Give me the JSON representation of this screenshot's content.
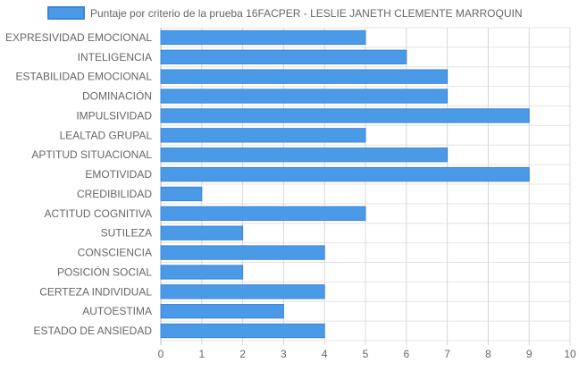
{
  "chart_data": {
    "type": "bar",
    "orientation": "horizontal",
    "legend_position": "top",
    "grid": true,
    "xlim": [
      0,
      10
    ],
    "x_ticks": [
      "0",
      "1",
      "2",
      "3",
      "4",
      "5",
      "6",
      "7",
      "8",
      "9",
      "10"
    ],
    "categories": [
      "EXPRESIVIDAD EMOCIONAL",
      "INTELIGENCIA",
      "ESTABILIDAD EMOCIONAL",
      "DOMINACIÓN",
      "IMPULSIVIDAD",
      "LEALTAD GRUPAL",
      "APTITUD SITUACIONAL",
      "EMOTIVIDAD",
      "CREDIBILIDAD",
      "ACTITUD COGNITIVA",
      "SUTILEZA",
      "CONSCIENCIA",
      "POSICIÓN SOCIAL",
      "CERTEZA INDIVIDUAL",
      "AUTOESTIMA",
      "ESTADO DE ANSIEDAD"
    ],
    "series": [
      {
        "name": "Puntaje por criterio de la prueba 16FACPER - LESLIE JANETH CLEMENTE MARROQUIN",
        "color": "#4b9ae8",
        "border_color": "#3b84d9",
        "values": [
          5,
          6,
          7,
          7,
          9,
          5,
          7,
          9,
          1,
          5,
          2,
          4,
          2,
          4,
          3,
          4
        ]
      }
    ]
  }
}
